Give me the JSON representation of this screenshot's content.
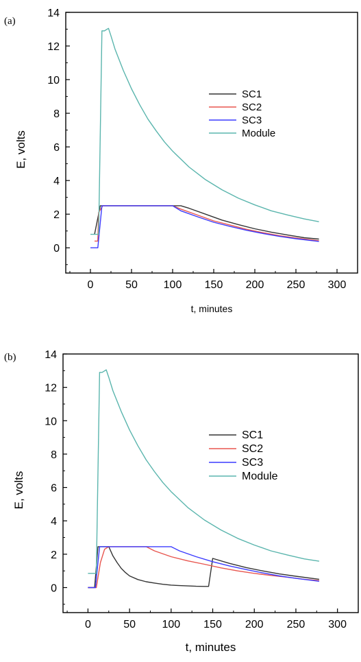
{
  "chart_data": [
    {
      "type": "line",
      "panel_label": "(a)",
      "xlabel": "t, minutes",
      "ylabel": "E, volts",
      "xlim": [
        -30,
        325
      ],
      "ylim": [
        -1.5,
        14
      ],
      "xticks": [
        0,
        50,
        100,
        150,
        200,
        250,
        300
      ],
      "yticks": [
        0,
        2,
        4,
        6,
        8,
        10,
        12,
        14
      ],
      "grid": false,
      "legend_position": "center-right",
      "series": [
        {
          "name": "SC1",
          "color": "#333333",
          "x": [
            5,
            12,
            100,
            110,
            120,
            140,
            160,
            180,
            200,
            220,
            240,
            260,
            278
          ],
          "y": [
            0.8,
            2.5,
            2.5,
            2.5,
            2.35,
            2.0,
            1.65,
            1.38,
            1.13,
            0.93,
            0.76,
            0.6,
            0.52
          ]
        },
        {
          "name": "SC2",
          "color": "#e8554e",
          "x": [
            5,
            9,
            10,
            15,
            100,
            110,
            130,
            150,
            170,
            190,
            210,
            230,
            250,
            278
          ],
          "y": [
            0.4,
            0.4,
            2.1,
            2.5,
            2.5,
            2.3,
            1.95,
            1.6,
            1.35,
            1.1,
            0.9,
            0.72,
            0.58,
            0.42
          ]
        },
        {
          "name": "SC3",
          "color": "#3a3aff",
          "x": [
            0,
            9,
            14,
            100,
            110,
            130,
            150,
            170,
            190,
            210,
            230,
            250,
            278
          ],
          "y": [
            0,
            0,
            2.5,
            2.5,
            2.2,
            1.85,
            1.52,
            1.27,
            1.04,
            0.85,
            0.68,
            0.54,
            0.38
          ]
        },
        {
          "name": "Module",
          "color": "#5ab5ad",
          "x": [
            0,
            10,
            14,
            17,
            22,
            25,
            30,
            40,
            50,
            60,
            70,
            80,
            90,
            100,
            120,
            140,
            160,
            180,
            200,
            220,
            240,
            260,
            278
          ],
          "y": [
            0.8,
            0.8,
            12.9,
            12.9,
            13.05,
            12.6,
            11.8,
            10.55,
            9.45,
            8.5,
            7.65,
            6.95,
            6.3,
            5.75,
            4.8,
            4.05,
            3.45,
            2.95,
            2.55,
            2.2,
            1.95,
            1.72,
            1.55
          ]
        }
      ]
    },
    {
      "type": "line",
      "panel_label": "(b)",
      "xlabel": "t, minutes",
      "ylabel": "E, volts",
      "xlim": [
        -30,
        325
      ],
      "ylim": [
        -1.5,
        14
      ],
      "xticks": [
        0,
        50,
        100,
        150,
        200,
        250,
        300
      ],
      "yticks": [
        0,
        2,
        4,
        6,
        8,
        10,
        12,
        14
      ],
      "grid": false,
      "legend_position": "center-right",
      "series": [
        {
          "name": "SC1",
          "color": "#333333",
          "x": [
            0,
            8,
            12,
            25,
            30,
            35,
            40,
            45,
            50,
            60,
            70,
            80,
            90,
            100,
            110,
            120,
            130,
            140,
            145,
            150,
            170,
            190,
            210,
            230,
            250,
            278
          ],
          "y": [
            0,
            0,
            2.45,
            2.45,
            1.9,
            1.5,
            1.15,
            0.9,
            0.7,
            0.48,
            0.35,
            0.27,
            0.2,
            0.15,
            0.12,
            0.1,
            0.08,
            0.07,
            0.07,
            1.75,
            1.45,
            1.2,
            1.0,
            0.82,
            0.68,
            0.5
          ]
        },
        {
          "name": "SC2",
          "color": "#e8554e",
          "x": [
            0,
            10,
            15,
            20,
            25,
            70,
            80,
            100,
            120,
            140,
            160,
            180,
            200,
            220,
            240,
            260,
            278
          ],
          "y": [
            0,
            0,
            1.5,
            2.3,
            2.45,
            2.45,
            2.2,
            1.85,
            1.6,
            1.4,
            1.18,
            1.0,
            0.85,
            0.73,
            0.62,
            0.5,
            0.42
          ]
        },
        {
          "name": "SC3",
          "color": "#3a3aff",
          "x": [
            0,
            9,
            14,
            100,
            110,
            130,
            150,
            170,
            190,
            210,
            230,
            250,
            278
          ],
          "y": [
            0,
            0,
            2.45,
            2.45,
            2.2,
            1.85,
            1.55,
            1.3,
            1.08,
            0.88,
            0.7,
            0.55,
            0.38
          ]
        },
        {
          "name": "Module",
          "color": "#5ab5ad",
          "x": [
            0,
            10,
            14,
            17,
            22,
            25,
            30,
            40,
            50,
            60,
            70,
            80,
            90,
            100,
            120,
            140,
            160,
            180,
            200,
            220,
            240,
            260,
            278
          ],
          "y": [
            0.85,
            0.85,
            12.9,
            12.9,
            13.05,
            12.6,
            11.8,
            10.55,
            9.45,
            8.5,
            7.65,
            6.95,
            6.3,
            5.75,
            4.8,
            4.05,
            3.45,
            2.95,
            2.55,
            2.2,
            1.95,
            1.72,
            1.58
          ]
        }
      ]
    }
  ]
}
